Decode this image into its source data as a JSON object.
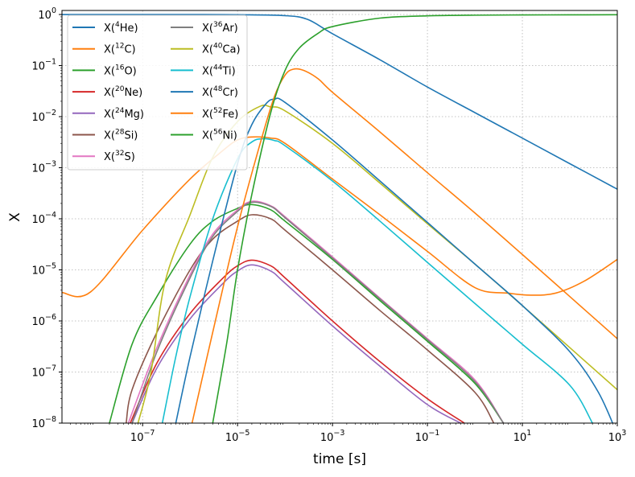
{
  "chart_data": {
    "type": "line",
    "xlabel": "time [s]",
    "ylabel": "X",
    "xscale": "log",
    "yscale": "log",
    "xlim": [
      2e-09,
      1000
    ],
    "ylim": [
      1e-08,
      1.2
    ],
    "grid": true,
    "legend_position": "top-left",
    "legend_columns": 2,
    "x_ticks": [
      {
        "value": 1e-07,
        "base": "10",
        "exp": "−7"
      },
      {
        "value": 1e-05,
        "base": "10",
        "exp": "−5"
      },
      {
        "value": 0.001,
        "base": "10",
        "exp": "−3"
      },
      {
        "value": 0.1,
        "base": "10",
        "exp": "−1"
      },
      {
        "value": 10,
        "base": "10",
        "exp": "1"
      },
      {
        "value": 1000,
        "base": "10",
        "exp": "3"
      }
    ],
    "y_ticks": [
      {
        "value": 1e-08,
        "base": "10",
        "exp": "−8"
      },
      {
        "value": 1e-07,
        "base": "10",
        "exp": "−7"
      },
      {
        "value": 1e-06,
        "base": "10",
        "exp": "−6"
      },
      {
        "value": 1e-05,
        "base": "10",
        "exp": "−5"
      },
      {
        "value": 0.0001,
        "base": "10",
        "exp": "−4"
      },
      {
        "value": 0.001,
        "base": "10",
        "exp": "−3"
      },
      {
        "value": 0.01,
        "base": "10",
        "exp": "−2"
      },
      {
        "value": 0.1,
        "base": "10",
        "exp": "−1"
      },
      {
        "value": 1,
        "base": "10",
        "exp": "0"
      }
    ],
    "series": [
      {
        "name": "X(4He)",
        "label_pre": "X(",
        "label_sup": "4",
        "label_post": "He)",
        "color": "#1f77b4",
        "points": [
          [
            2e-09,
            1.0
          ],
          [
            1e-06,
            1.0
          ],
          [
            1e-05,
            0.99
          ],
          [
            0.0001,
            0.95
          ],
          [
            0.0003,
            0.8
          ],
          [
            0.001,
            0.42
          ],
          [
            0.01,
            0.13
          ],
          [
            0.1,
            0.038
          ],
          [
            1,
            0.012
          ],
          [
            10,
            0.0038
          ],
          [
            100,
            0.0012
          ],
          [
            1000,
            0.00038
          ]
        ]
      },
      {
        "name": "X(12C)",
        "label_pre": "X(",
        "label_sup": "12",
        "label_post": "C)",
        "color": "#ff7f0e",
        "points": [
          [
            2e-09,
            3.6e-06
          ],
          [
            8e-09,
            3.7e-06
          ],
          [
            1e-07,
            6e-05
          ],
          [
            1e-06,
            0.0006
          ],
          [
            5e-06,
            0.0022
          ],
          [
            1e-05,
            0.0035
          ],
          [
            2e-05,
            0.004
          ],
          [
            5e-05,
            0.0038
          ],
          [
            0.0001,
            0.003
          ],
          [
            0.001,
            0.0006
          ],
          [
            0.01,
            0.00012
          ],
          [
            0.1,
            2.3e-05
          ],
          [
            1,
            4.5e-06
          ],
          [
            5,
            3.5e-06
          ],
          [
            15,
            3.2e-06
          ],
          [
            50,
            3.5e-06
          ],
          [
            200,
            6e-06
          ],
          [
            1000,
            1.6e-05
          ]
        ]
      },
      {
        "name": "X(16O)",
        "label_pre": "X(",
        "label_sup": "16",
        "label_post": "O)",
        "color": "#2ca02c",
        "points": [
          [
            2e-08,
            1e-08
          ],
          [
            6e-08,
            3.5e-07
          ],
          [
            2e-07,
            3e-06
          ],
          [
            1e-06,
            3.2e-05
          ],
          [
            3e-06,
            9e-05
          ],
          [
            1e-05,
            0.00016
          ],
          [
            2e-05,
            0.00019
          ],
          [
            5e-05,
            0.00015
          ],
          [
            0.0001,
            9e-05
          ],
          [
            0.001,
            1.6e-05
          ],
          [
            0.01,
            2.5e-06
          ],
          [
            0.1,
            4e-07
          ],
          [
            1,
            6e-08
          ],
          [
            4,
            1e-08
          ]
        ]
      },
      {
        "name": "X(20Ne)",
        "label_pre": "X(",
        "label_sup": "20",
        "label_post": "Ne)",
        "color": "#d62728",
        "points": [
          [
            5.5e-08,
            1e-08
          ],
          [
            2e-07,
            1.5e-07
          ],
          [
            1e-06,
            1.4e-06
          ],
          [
            5e-06,
            7e-06
          ],
          [
            1e-05,
            1.2e-05
          ],
          [
            2e-05,
            1.55e-05
          ],
          [
            5e-05,
            1.2e-05
          ],
          [
            0.0001,
            7e-06
          ],
          [
            0.001,
            1e-06
          ],
          [
            0.01,
            1.6e-07
          ],
          [
            0.1,
            3e-08
          ],
          [
            0.6,
            1e-08
          ]
        ]
      },
      {
        "name": "X(24Mg)",
        "label_pre": "X(",
        "label_sup": "24",
        "label_post": "Mg)",
        "color": "#9467bd",
        "points": [
          [
            6e-08,
            1e-08
          ],
          [
            2e-07,
            1.2e-07
          ],
          [
            1e-06,
            1.1e-06
          ],
          [
            5e-06,
            5.5e-06
          ],
          [
            1e-05,
            9.5e-06
          ],
          [
            2e-05,
            1.25e-05
          ],
          [
            5e-05,
            9.5e-06
          ],
          [
            0.0001,
            5.5e-06
          ],
          [
            0.001,
            8e-07
          ],
          [
            0.01,
            1.3e-07
          ],
          [
            0.1,
            2.3e-08
          ],
          [
            0.5,
            1e-08
          ]
        ]
      },
      {
        "name": "X(28Si)",
        "label_pre": "X(",
        "label_sup": "28",
        "label_post": "Si)",
        "color": "#8c564b",
        "points": [
          [
            4.5e-08,
            1e-08
          ],
          [
            6e-08,
            4.5e-08
          ],
          [
            2e-07,
            6e-07
          ],
          [
            1e-06,
            1e-05
          ],
          [
            3e-06,
            4e-05
          ],
          [
            1e-05,
            9e-05
          ],
          [
            2e-05,
            0.00012
          ],
          [
            5e-05,
            0.0001
          ],
          [
            0.0001,
            6e-05
          ],
          [
            0.001,
            1e-05
          ],
          [
            0.01,
            1.6e-06
          ],
          [
            0.1,
            2.7e-07
          ],
          [
            1,
            4e-08
          ],
          [
            2.5,
            1e-08
          ]
        ]
      },
      {
        "name": "X(32S)",
        "label_pre": "X(",
        "label_sup": "32",
        "label_post": "S)",
        "color": "#e377c2",
        "points": [
          [
            5e-08,
            1e-08
          ],
          [
            2e-07,
            3e-07
          ],
          [
            1e-06,
            8e-06
          ],
          [
            3e-06,
            5e-05
          ],
          [
            1e-05,
            0.00015
          ],
          [
            2e-05,
            0.00022
          ],
          [
            5e-05,
            0.00018
          ],
          [
            0.0001,
            0.00011
          ],
          [
            0.001,
            1.8e-05
          ],
          [
            0.01,
            2.8e-06
          ],
          [
            0.1,
            4.5e-07
          ],
          [
            1,
            7e-08
          ],
          [
            4,
            1e-08
          ]
        ]
      },
      {
        "name": "X(36Ar)",
        "label_pre": "X(",
        "label_sup": "36",
        "label_post": "Ar)",
        "color": "#7f7f7f",
        "points": [
          [
            6e-08,
            1e-08
          ],
          [
            2e-07,
            2.5e-07
          ],
          [
            1e-06,
            7e-06
          ],
          [
            3e-06,
            4.5e-05
          ],
          [
            1e-05,
            0.00014
          ],
          [
            2e-05,
            0.00021
          ],
          [
            5e-05,
            0.000175
          ],
          [
            0.0001,
            0.000105
          ],
          [
            0.001,
            1.7e-05
          ],
          [
            0.01,
            2.7e-06
          ],
          [
            0.1,
            4.3e-07
          ],
          [
            1,
            6.5e-08
          ],
          [
            4,
            1e-08
          ]
        ]
      },
      {
        "name": "X(40Ca)",
        "label_pre": "X(",
        "label_sup": "40",
        "label_post": "Ca)",
        "color": "#bcbd22",
        "points": [
          [
            8e-08,
            1e-08
          ],
          [
            1.5e-07,
            1e-07
          ],
          [
            3e-07,
            6e-06
          ],
          [
            1e-06,
            0.00012
          ],
          [
            3e-06,
            0.0016
          ],
          [
            1e-05,
            0.008
          ],
          [
            3e-05,
            0.016
          ],
          [
            5e-05,
            0.0155
          ],
          [
            0.0001,
            0.013
          ],
          [
            0.001,
            0.003
          ],
          [
            0.01,
            0.0005
          ],
          [
            0.1,
            8e-05
          ],
          [
            1,
            1.3e-05
          ],
          [
            10,
            2e-06
          ],
          [
            100,
            3e-07
          ],
          [
            1000,
            4.5e-08
          ]
        ]
      },
      {
        "name": "X(44Ti)",
        "label_pre": "X(",
        "label_sup": "44",
        "label_post": "Ti)",
        "color": "#17becf",
        "points": [
          [
            2.6e-07,
            1e-08
          ],
          [
            5e-07,
            2e-07
          ],
          [
            1e-06,
            3e-06
          ],
          [
            3e-06,
            0.0001
          ],
          [
            1e-05,
            0.0015
          ],
          [
            2e-05,
            0.0032
          ],
          [
            3.5e-05,
            0.0037
          ],
          [
            6e-05,
            0.0034
          ],
          [
            0.0001,
            0.0027
          ],
          [
            0.001,
            0.00055
          ],
          [
            0.01,
            9e-05
          ],
          [
            0.1,
            1.4e-05
          ],
          [
            1,
            2.2e-06
          ],
          [
            10,
            3.5e-07
          ],
          [
            100,
            5.5e-08
          ],
          [
            300,
            1e-08
          ]
        ]
      },
      {
        "name": "X(48Cr)",
        "label_pre": "X(",
        "label_sup": "48",
        "label_post": "Cr)",
        "color": "#1f77b4",
        "points": [
          [
            5e-07,
            1e-08
          ],
          [
            1e-06,
            2e-07
          ],
          [
            3e-06,
            1.5e-05
          ],
          [
            1e-05,
            0.0012
          ],
          [
            2e-05,
            0.007
          ],
          [
            4e-05,
            0.018
          ],
          [
            6e-05,
            0.022
          ],
          [
            0.0001,
            0.019
          ],
          [
            0.001,
            0.0035
          ],
          [
            0.01,
            0.00055
          ],
          [
            0.1,
            8.5e-05
          ],
          [
            1,
            1.3e-05
          ],
          [
            10,
            2e-06
          ],
          [
            100,
            2.5e-07
          ],
          [
            400,
            4e-08
          ],
          [
            1000,
            6e-09
          ]
        ]
      },
      {
        "name": "X(52Fe)",
        "label_pre": "X(",
        "label_sup": "52",
        "label_post": "Fe)",
        "color": "#ff7f0e",
        "points": [
          [
            1.1e-06,
            1e-08
          ],
          [
            3e-06,
            6e-07
          ],
          [
            1e-05,
            7e-05
          ],
          [
            3e-05,
            0.003
          ],
          [
            6e-05,
            0.025
          ],
          [
            0.0001,
            0.065
          ],
          [
            0.00015,
            0.085
          ],
          [
            0.00025,
            0.08
          ],
          [
            0.0005,
            0.055
          ],
          [
            0.001,
            0.03
          ],
          [
            0.01,
            0.005
          ],
          [
            0.1,
            0.0008
          ],
          [
            1,
            0.00013
          ],
          [
            10,
            2e-05
          ],
          [
            100,
            3e-06
          ],
          [
            1000,
            4.5e-07
          ]
        ]
      },
      {
        "name": "X(56Ni)",
        "label_pre": "X(",
        "label_sup": "56",
        "label_post": "Ni)",
        "color": "#2ca02c",
        "points": [
          [
            3e-06,
            1e-08
          ],
          [
            6e-06,
            4e-07
          ],
          [
            1e-05,
            1e-05
          ],
          [
            2e-05,
            0.0003
          ],
          [
            5e-05,
            0.012
          ],
          [
            0.0001,
            0.08
          ],
          [
            0.0002,
            0.22
          ],
          [
            0.0005,
            0.43
          ],
          [
            0.001,
            0.58
          ],
          [
            0.01,
            0.85
          ],
          [
            0.1,
            0.94
          ],
          [
            1,
            0.97
          ],
          [
            10,
            0.98
          ],
          [
            100,
            0.985
          ],
          [
            1000,
            0.99
          ]
        ]
      }
    ]
  }
}
